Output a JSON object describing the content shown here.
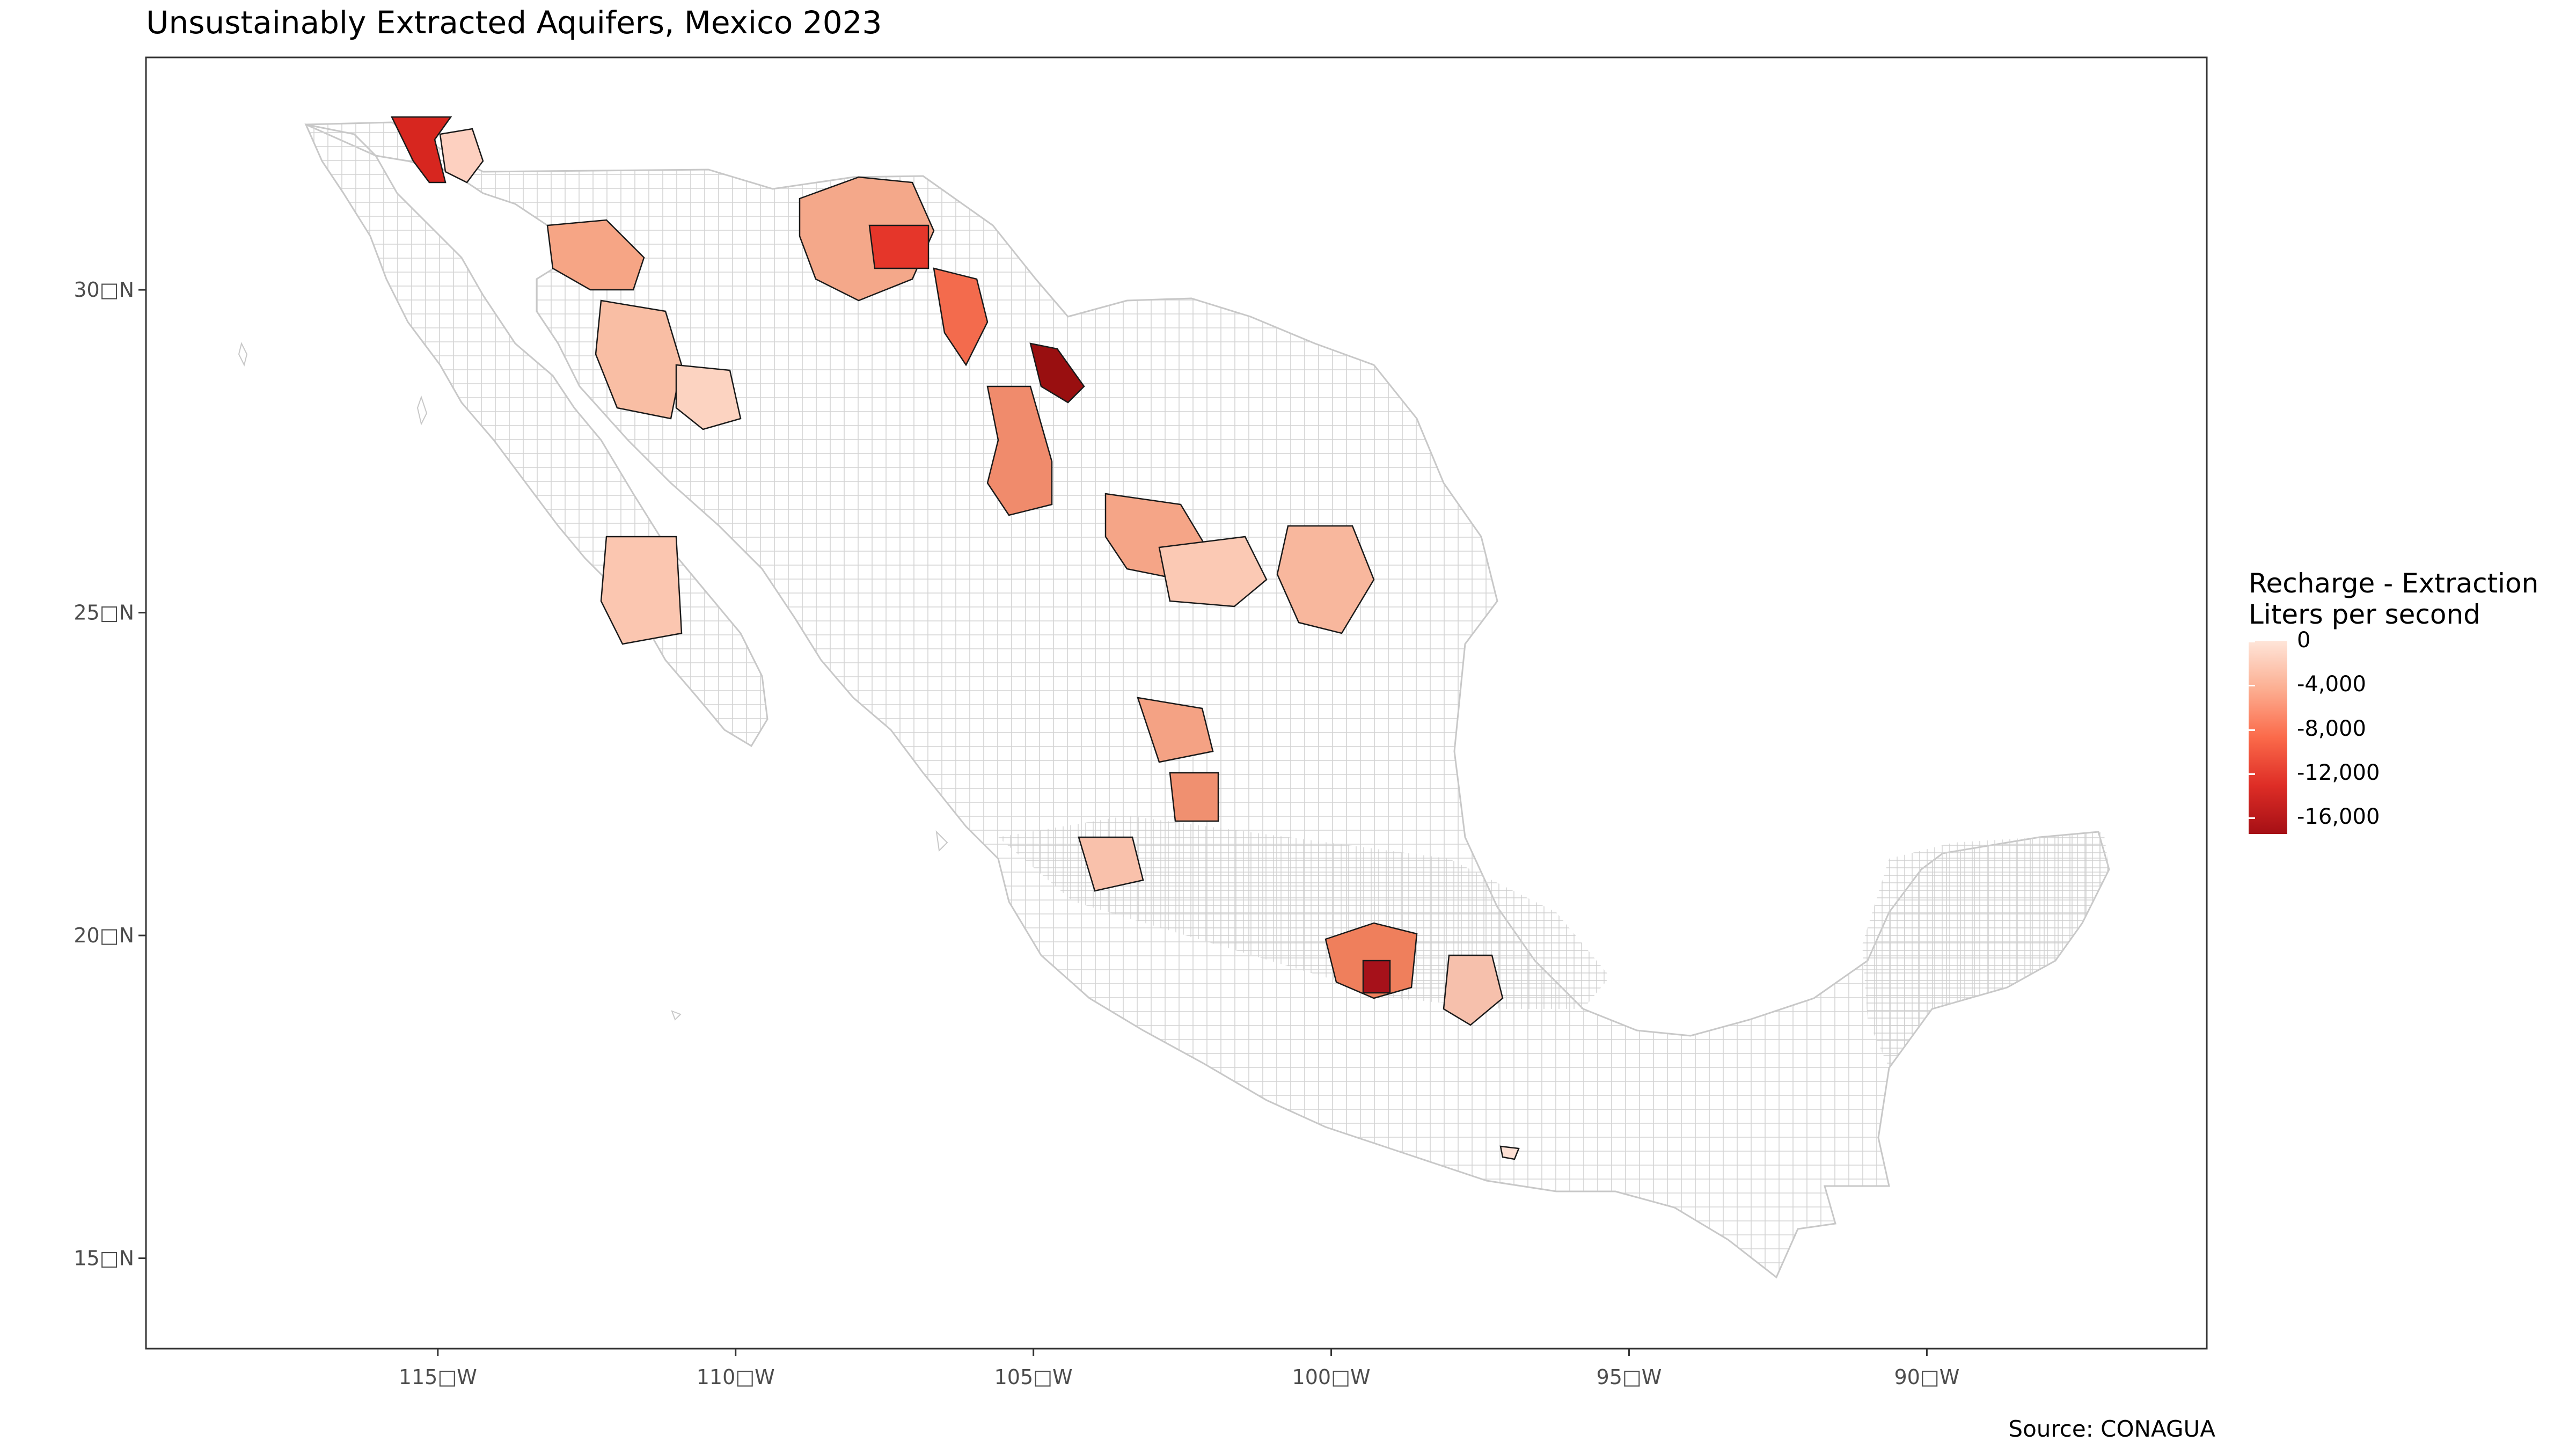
{
  "title": "Unsustainably Extracted Aquifers, Mexico 2023",
  "source": "Source: CONAGUA",
  "axes": {
    "x_ticks": [
      "115□W",
      "110□W",
      "105□W",
      "100□W",
      "95□W",
      "90□W"
    ],
    "y_ticks": [
      "30□N",
      "25□N",
      "20□N",
      "15□N"
    ],
    "x_values": [
      -115,
      -110,
      -105,
      -100,
      -95,
      -90
    ],
    "y_values": [
      30,
      25,
      20,
      15
    ],
    "x_range": [
      -119.9,
      -85.3
    ],
    "y_range": [
      13.6,
      33.6
    ]
  },
  "legend": {
    "title_line1": "Recharge - Extraction",
    "title_line2": "Liters per second",
    "labels": [
      "0",
      "-4,000",
      "-8,000",
      "-12,000",
      "-16,000"
    ],
    "range": [
      -17500,
      0
    ],
    "colors": [
      "#fee5d9",
      "#fcae91",
      "#fb6a4a",
      "#de2d26",
      "#a50f15"
    ]
  },
  "colors": {
    "outline": "#c8c8c8",
    "aquifer_border": "#1a1a1a",
    "panel_border": "#333333",
    "background": "#ffffff"
  }
}
